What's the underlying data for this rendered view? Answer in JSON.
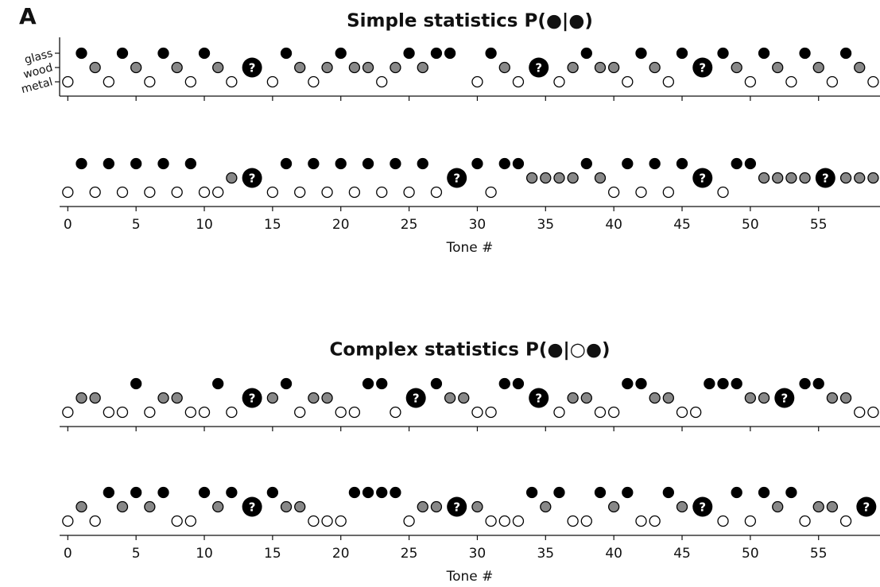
{
  "label": "A",
  "chart_data": [
    {
      "type": "scatter",
      "title": "Simple statistics P(●|●)",
      "x": [
        0,
        1,
        2,
        3,
        4,
        5,
        6,
        7,
        8,
        9,
        10,
        11,
        12,
        15,
        16,
        17,
        18,
        19,
        20,
        21,
        22,
        23,
        24,
        25,
        26,
        27,
        28,
        30,
        31,
        32,
        33,
        36,
        37,
        38,
        39,
        40,
        41,
        42,
        43,
        44,
        45,
        48,
        49,
        50,
        51,
        52,
        53,
        54,
        55,
        56,
        57,
        58,
        59
      ],
      "values": [
        0,
        2,
        1,
        0,
        2,
        1,
        0,
        2,
        1,
        0,
        2,
        1,
        0,
        0,
        2,
        1,
        0,
        1,
        2,
        1,
        1,
        0,
        1,
        2,
        1,
        2,
        2,
        0,
        2,
        1,
        0,
        0,
        1,
        2,
        1,
        1,
        0,
        2,
        1,
        0,
        2,
        2,
        1,
        0,
        2,
        1,
        0,
        2,
        1,
        0,
        2,
        1,
        0
      ],
      "question_label": "?",
      "question_x": [
        13.5,
        34.5,
        46.5
      ],
      "colors": [
        "#ffffff",
        "#888888",
        "#000000"
      ],
      "xlim": [
        -0.6,
        59.5
      ],
      "ylim": [
        -1,
        3
      ],
      "xticks": [
        0,
        5,
        10,
        15,
        20,
        25,
        30,
        35,
        40,
        45,
        50,
        55
      ],
      "xtick_labels": false,
      "yticks": [
        {
          "value": 0,
          "label": "metal"
        },
        {
          "value": 1,
          "label": "wood"
        },
        {
          "value": 2,
          "label": "glass"
        }
      ]
    },
    {
      "type": "scatter",
      "xlabel": "Tone #",
      "x": [
        0,
        1,
        2,
        3,
        4,
        5,
        6,
        7,
        8,
        9,
        10,
        11,
        12,
        15,
        16,
        17,
        18,
        19,
        20,
        21,
        22,
        23,
        24,
        25,
        26,
        27,
        30,
        31,
        32,
        33,
        34,
        35,
        36,
        37,
        38,
        39,
        40,
        41,
        42,
        43,
        44,
        45,
        48,
        49,
        50,
        51,
        52,
        53,
        54,
        57,
        58,
        59
      ],
      "values": [
        0,
        2,
        0,
        2,
        0,
        2,
        0,
        2,
        0,
        2,
        0,
        0,
        1,
        0,
        2,
        0,
        2,
        0,
        2,
        0,
        2,
        0,
        2,
        0,
        2,
        0,
        2,
        0,
        2,
        2,
        1,
        1,
        1,
        1,
        2,
        1,
        0,
        2,
        0,
        2,
        0,
        2,
        0,
        2,
        2,
        1,
        1,
        1,
        1,
        1,
        1,
        1
      ],
      "question_label": "?",
      "question_x": [
        13.5,
        28.5,
        46.5,
        55.5
      ],
      "colors": [
        "#ffffff",
        "#888888",
        "#000000"
      ],
      "xlim": [
        -0.6,
        59.5
      ],
      "ylim": [
        -1,
        3
      ],
      "xticks": [
        0,
        5,
        10,
        15,
        20,
        25,
        30,
        35,
        40,
        45,
        50,
        55
      ],
      "xtick_labels": true
    },
    {
      "type": "scatter",
      "title": "Complex statistics P(●|○●)",
      "x": [
        0,
        1,
        2,
        3,
        4,
        5,
        6,
        7,
        8,
        9,
        10,
        11,
        12,
        15,
        16,
        17,
        18,
        19,
        20,
        21,
        22,
        23,
        24,
        27,
        28,
        29,
        30,
        31,
        32,
        33,
        36,
        37,
        38,
        39,
        40,
        41,
        42,
        43,
        44,
        45,
        46,
        47,
        48,
        49,
        50,
        51,
        54,
        55,
        56,
        57,
        58,
        59
      ],
      "values": [
        0,
        1,
        1,
        0,
        0,
        2,
        0,
        1,
        1,
        0,
        0,
        2,
        0,
        1,
        2,
        0,
        1,
        1,
        0,
        0,
        2,
        2,
        0,
        2,
        1,
        1,
        0,
        0,
        2,
        2,
        0,
        1,
        1,
        0,
        0,
        2,
        2,
        1,
        1,
        0,
        0,
        2,
        2,
        2,
        1,
        1,
        2,
        2,
        1,
        1,
        0,
        0
      ],
      "question_label": "?",
      "question_x": [
        13.5,
        25.5,
        34.5,
        52.5
      ],
      "colors": [
        "#ffffff",
        "#888888",
        "#000000"
      ],
      "xlim": [
        -0.6,
        59.5
      ],
      "ylim": [
        -1,
        3
      ],
      "xticks": [
        0,
        5,
        10,
        15,
        20,
        25,
        30,
        35,
        40,
        45,
        50,
        55
      ],
      "xtick_labels": false
    },
    {
      "type": "scatter",
      "xlabel": "Tone #",
      "x": [
        0,
        1,
        2,
        3,
        4,
        5,
        6,
        7,
        8,
        9,
        10,
        11,
        12,
        15,
        16,
        17,
        18,
        19,
        20,
        21,
        22,
        23,
        24,
        25,
        26,
        27,
        30,
        31,
        32,
        33,
        34,
        35,
        36,
        37,
        38,
        39,
        40,
        41,
        42,
        43,
        44,
        45,
        48,
        49,
        50,
        51,
        52,
        53,
        54,
        55,
        56,
        57
      ],
      "values": [
        0,
        1,
        0,
        2,
        1,
        2,
        1,
        2,
        0,
        0,
        2,
        1,
        2,
        2,
        1,
        1,
        0,
        0,
        0,
        2,
        2,
        2,
        2,
        0,
        1,
        1,
        1,
        0,
        0,
        0,
        2,
        1,
        2,
        0,
        0,
        2,
        1,
        2,
        0,
        0,
        2,
        1,
        0,
        2,
        0,
        2,
        1,
        2,
        0,
        1,
        1,
        0
      ],
      "question_label": "?",
      "question_x": [
        13.5,
        28.5,
        46.5,
        58.5
      ],
      "colors": [
        "#ffffff",
        "#888888",
        "#000000"
      ],
      "xlim": [
        -0.6,
        59.5
      ],
      "ylim": [
        -1,
        3
      ],
      "xticks": [
        0,
        5,
        10,
        15,
        20,
        25,
        30,
        35,
        40,
        45,
        50,
        55
      ],
      "xtick_labels": true
    }
  ]
}
